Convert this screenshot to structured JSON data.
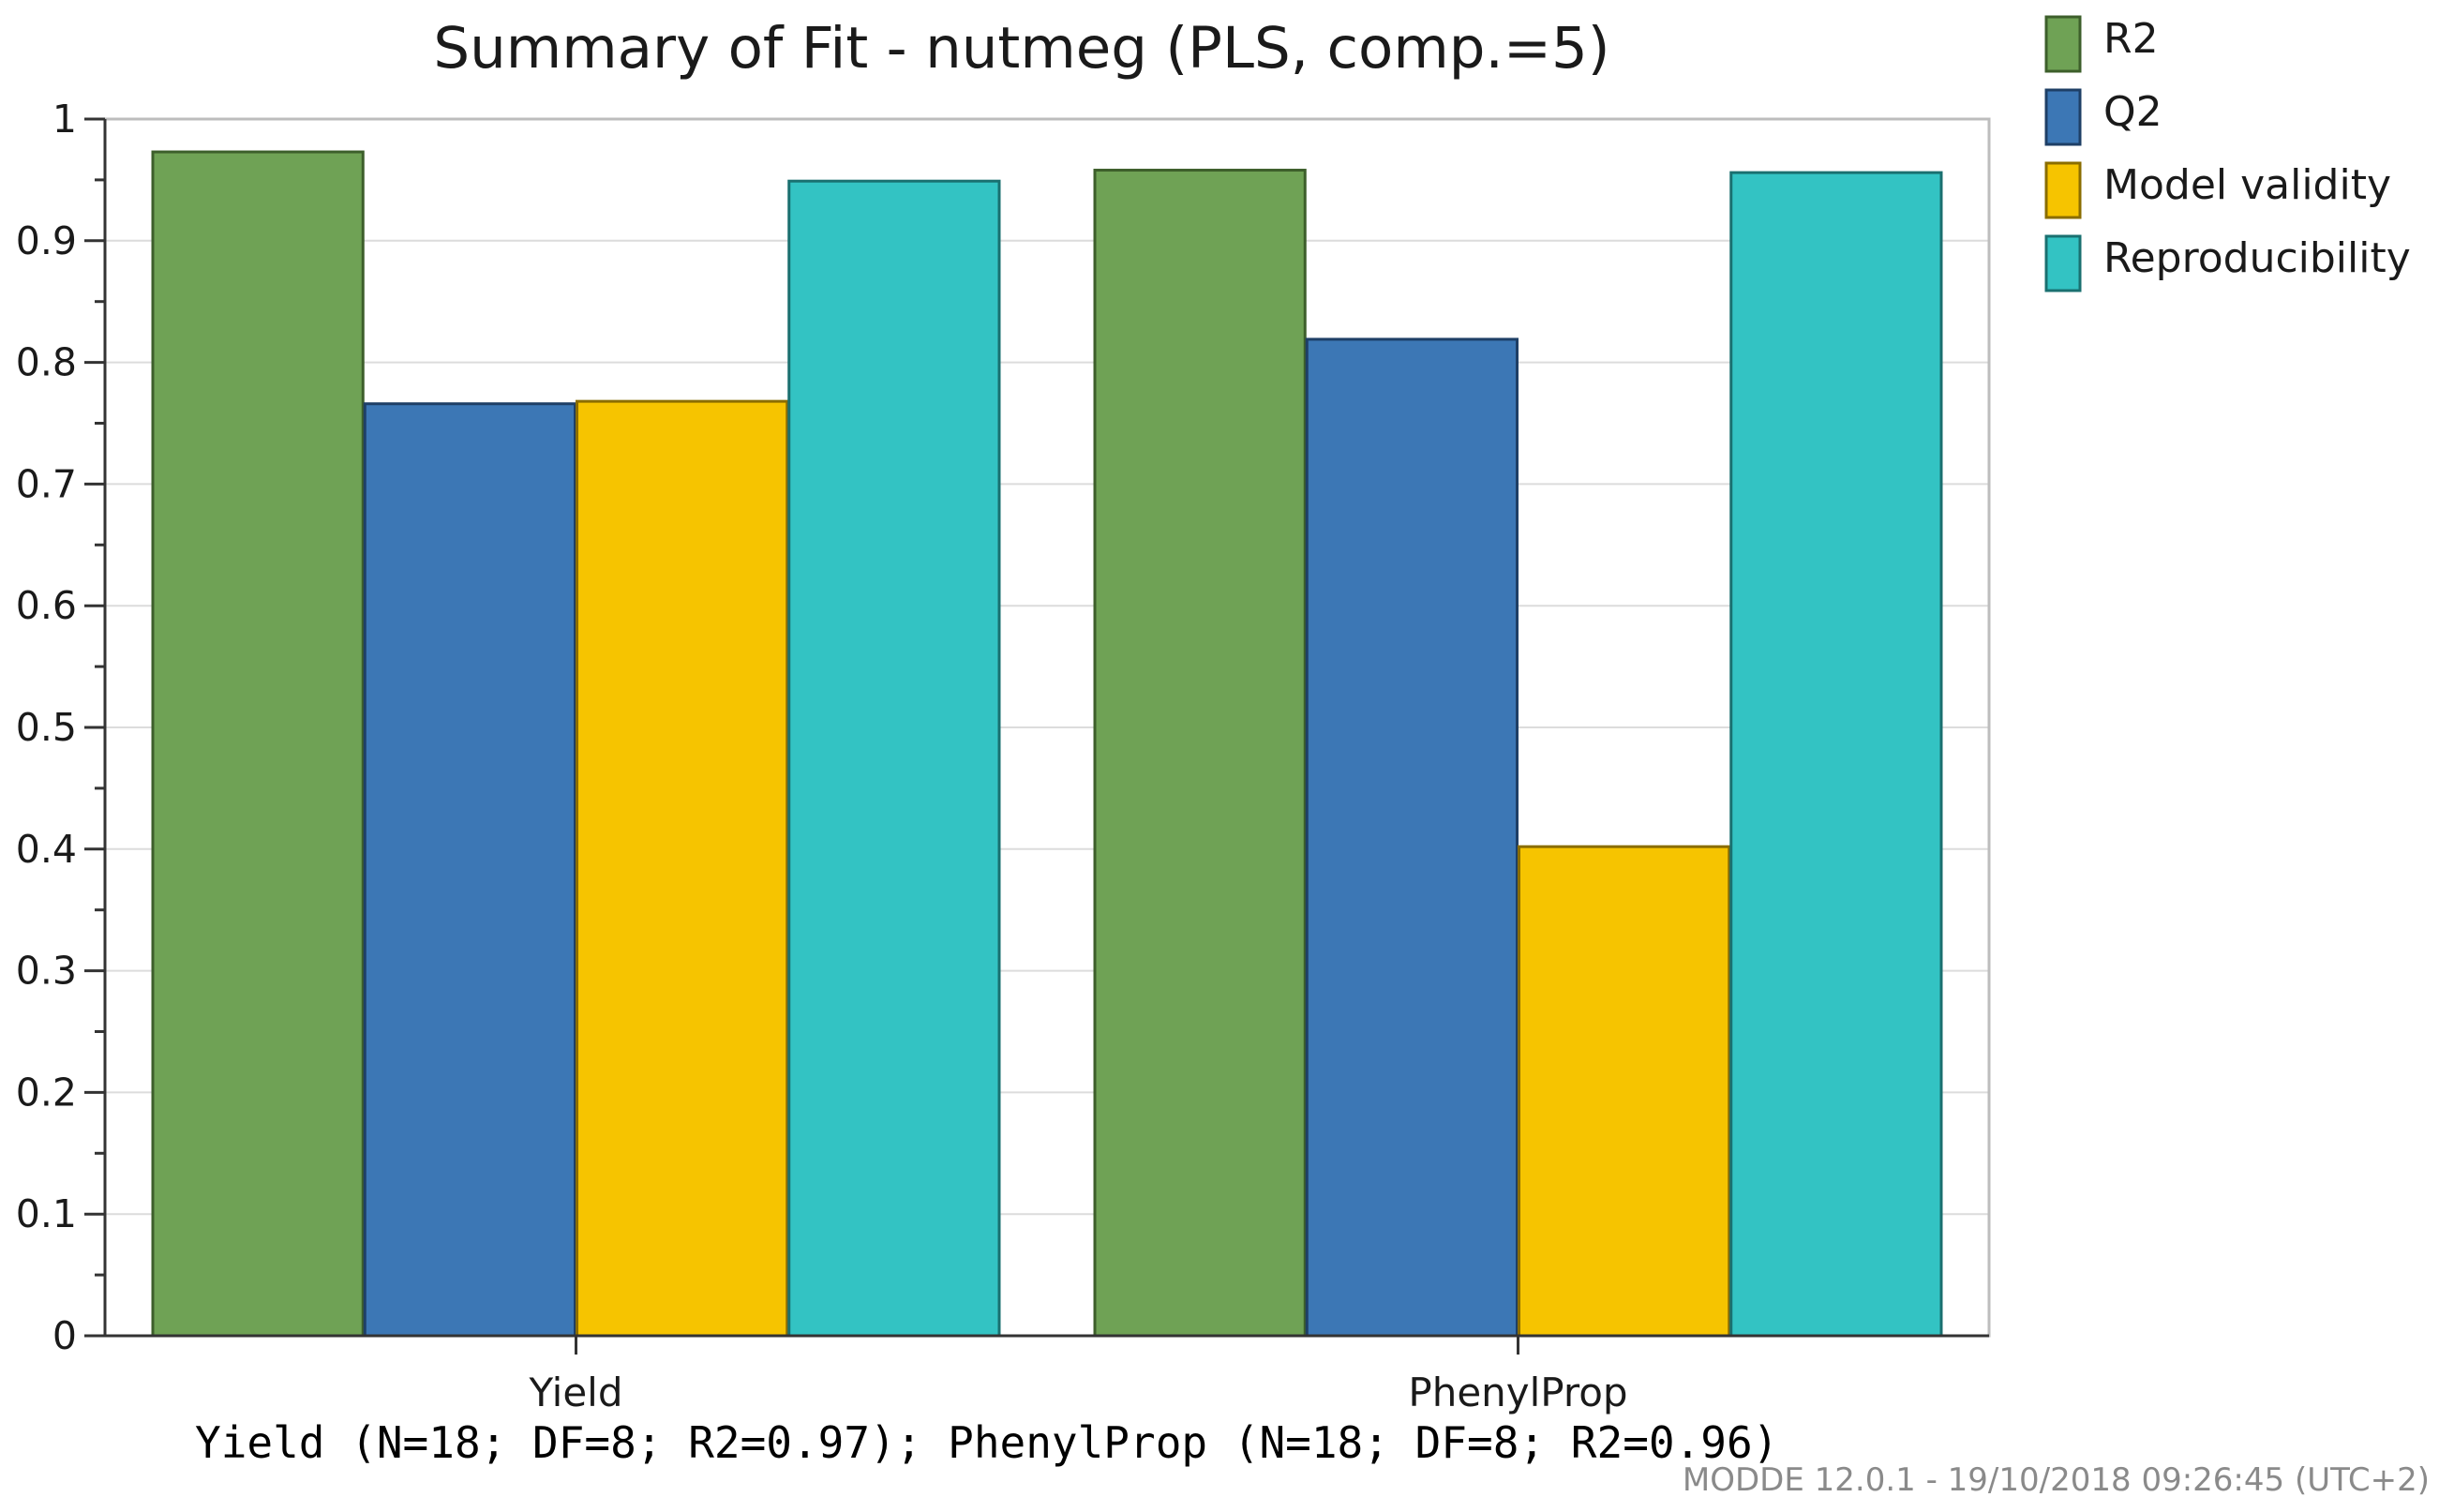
{
  "chart_data": {
    "type": "bar",
    "title": "Summary of Fit - nutmeg (PLS, comp.=5)",
    "categories": [
      "Yield",
      "PhenylProp"
    ],
    "series": [
      {
        "name": "R2",
        "color": "#6fa255",
        "edge": "#3d5f2b",
        "values": [
          0.973,
          0.958
        ]
      },
      {
        "name": "Q2",
        "color": "#3c77b5",
        "edge": "#1e3f66",
        "values": [
          0.766,
          0.819
        ]
      },
      {
        "name": "Model validity",
        "color": "#f6c400",
        "edge": "#8a6d00",
        "values": [
          0.768,
          0.402
        ]
      },
      {
        "name": "Reproducibility",
        "color": "#33c3c3",
        "edge": "#1a7070",
        "values": [
          0.949,
          0.956
        ]
      }
    ],
    "ylim": [
      0,
      1
    ],
    "yticks": [
      "0",
      "0.1",
      "0.2",
      "0.3",
      "0.4",
      "0.5",
      "0.6",
      "0.7",
      "0.8",
      "0.9",
      "1"
    ],
    "grid": true,
    "legend_position": "top-right-outside",
    "xlabel": "",
    "ylabel": ""
  },
  "summary_line": "Yield (N=18; DF=8; R2=0.97); PhenylProp (N=18; DF=8; R2=0.96)",
  "footer": "MODDE 12.0.1 - 19/10/2018 09:26:45 (UTC+2)"
}
